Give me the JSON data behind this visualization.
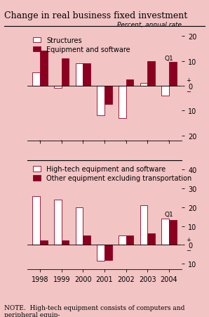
{
  "title": "Change in real business fixed investment",
  "subtitle": "Percent, annual rate",
  "note": "NOTE.  High-tech equipment consists of computers and peripheral equip-\nment and communications equipment.",
  "background_color": "#f2c4c4",
  "years": [
    "1998",
    "1999",
    "2000",
    "2001",
    "2002",
    "2003",
    "Q1\n2004"
  ],
  "top_chart": {
    "legend": [
      "Structures",
      "Equipment and software"
    ],
    "structures": [
      5.5,
      -1.0,
      9.0,
      -12.0,
      -13.0,
      1.0,
      -4.0
    ],
    "equip_software": [
      14.0,
      11.0,
      9.0,
      -7.5,
      2.5,
      10.0,
      9.5
    ],
    "ylim": [
      -22,
      22
    ],
    "yticks": [
      -20,
      -10,
      0,
      10,
      20
    ],
    "yticklabels": [
      "20",
      "10",
      "0",
      "10",
      "20"
    ]
  },
  "bottom_chart": {
    "legend": [
      "High-tech equipment and software",
      "Other equipment excluding transportation"
    ],
    "hightech": [
      26.0,
      24.0,
      20.0,
      -8.5,
      5.0,
      21.0,
      14.0
    ],
    "other_equip": [
      2.5,
      2.5,
      5.0,
      -8.0,
      5.0,
      6.0,
      13.0
    ],
    "ylim": [
      -13,
      45
    ],
    "yticks": [
      -10,
      0,
      10,
      20,
      30,
      40
    ],
    "yticklabels": [
      "10",
      "0",
      "10",
      "20",
      "30",
      "40"
    ]
  },
  "bar_width": 0.35,
  "structures_color": "#ffffff",
  "equip_color": "#8b0020",
  "hightech_color": "#ffffff",
  "other_color": "#8b0020",
  "bar_edge_color": "#8b0020",
  "tick_label_fontsize": 7,
  "legend_fontsize": 7,
  "title_fontsize": 9,
  "note_fontsize": 6.5
}
